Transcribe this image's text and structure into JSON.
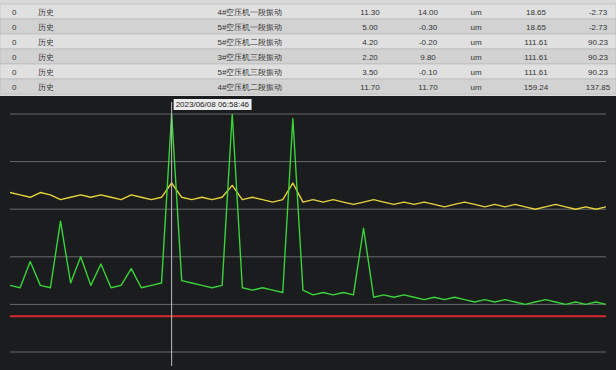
{
  "table": {
    "rows": [
      [
        "0",
        "历史",
        "4#空压机一段振动",
        "11.30",
        "14.00",
        "um",
        "18.65",
        "-2.73"
      ],
      [
        "0",
        "历史",
        "5#空压机一段振动",
        "5.00",
        "-0.30",
        "um",
        "18.65",
        "-2.73"
      ],
      [
        "0",
        "历史",
        "5#空压机二段振动",
        "4.20",
        "-0.20",
        "um",
        "111.61",
        "90.23"
      ],
      [
        "0",
        "历史",
        "3#空压机三段振动",
        "2.20",
        "9.80",
        "um",
        "111.61",
        "90.23"
      ],
      [
        "0",
        "历史",
        "5#空压机三段振动",
        "3.50",
        "-0.10",
        "um",
        "111.61",
        "90.23"
      ],
      [
        "0",
        "历史",
        "4#空压机二段振动",
        "11.70",
        "11.70",
        "um",
        "159.24",
        "137.85"
      ]
    ]
  },
  "chart_data": {
    "type": "line",
    "x": [
      0,
      1,
      2,
      3,
      4,
      5,
      6,
      7,
      8,
      9,
      10,
      11,
      12,
      13,
      14,
      15,
      16,
      17,
      18,
      19,
      20,
      21,
      22,
      23,
      24,
      25,
      26,
      27,
      28,
      29,
      30,
      31,
      32,
      33,
      34,
      35,
      36,
      37,
      38,
      39,
      40,
      41,
      42,
      43,
      44,
      45,
      46,
      47,
      48,
      49,
      50,
      51,
      52,
      53,
      54,
      55,
      56,
      57,
      58,
      59
    ],
    "xlim": [
      0,
      59
    ],
    "ylim": [
      0,
      100
    ],
    "yticks": [
      0,
      20,
      40,
      60,
      80,
      100
    ],
    "grid": true,
    "tick_labels": false,
    "series": [
      {
        "color": "#e6d23c",
        "values": [
          67,
          66,
          65,
          67,
          66,
          64,
          65,
          66,
          65,
          66,
          65,
          64,
          66,
          65,
          64,
          65,
          71,
          65,
          64,
          65,
          64,
          65,
          70,
          64,
          65,
          64,
          63,
          64,
          71,
          63,
          64,
          63,
          64,
          63,
          62,
          63,
          64,
          63,
          62,
          63,
          62,
          63,
          62,
          61,
          62,
          63,
          62,
          61,
          62,
          61,
          62,
          61,
          60,
          61,
          62,
          61,
          60,
          61,
          60,
          61
        ]
      },
      {
        "color": "#39d43a",
        "values": [
          28,
          27,
          38,
          28,
          27,
          55,
          29,
          40,
          28,
          37,
          27,
          28,
          35,
          27,
          28,
          29,
          100,
          30,
          29,
          28,
          27,
          28,
          100,
          27,
          26,
          27,
          26,
          25,
          98,
          26,
          24,
          25,
          24,
          25,
          24,
          52,
          23,
          24,
          23,
          24,
          23,
          22,
          23,
          22,
          23,
          22,
          21,
          22,
          21,
          22,
          21,
          20,
          21,
          22,
          21,
          20,
          21,
          20,
          21,
          20
        ]
      },
      {
        "color": "#d8282c",
        "values": [
          15,
          15,
          15,
          15,
          15,
          15,
          15,
          15,
          15,
          15,
          15,
          15,
          15,
          15,
          15,
          15,
          15,
          15,
          15,
          15,
          15,
          15,
          15,
          15,
          15,
          15,
          15,
          15,
          15,
          15,
          15,
          15,
          15,
          15,
          15,
          15,
          15,
          15,
          15,
          15,
          15,
          15,
          15,
          15,
          15,
          15,
          15,
          15,
          15,
          15,
          15,
          15,
          15,
          15,
          15,
          15,
          15,
          15,
          15,
          15
        ]
      }
    ],
    "annotations": [
      {
        "x": 16,
        "label": "2023/06/08 06:58:46"
      }
    ]
  }
}
